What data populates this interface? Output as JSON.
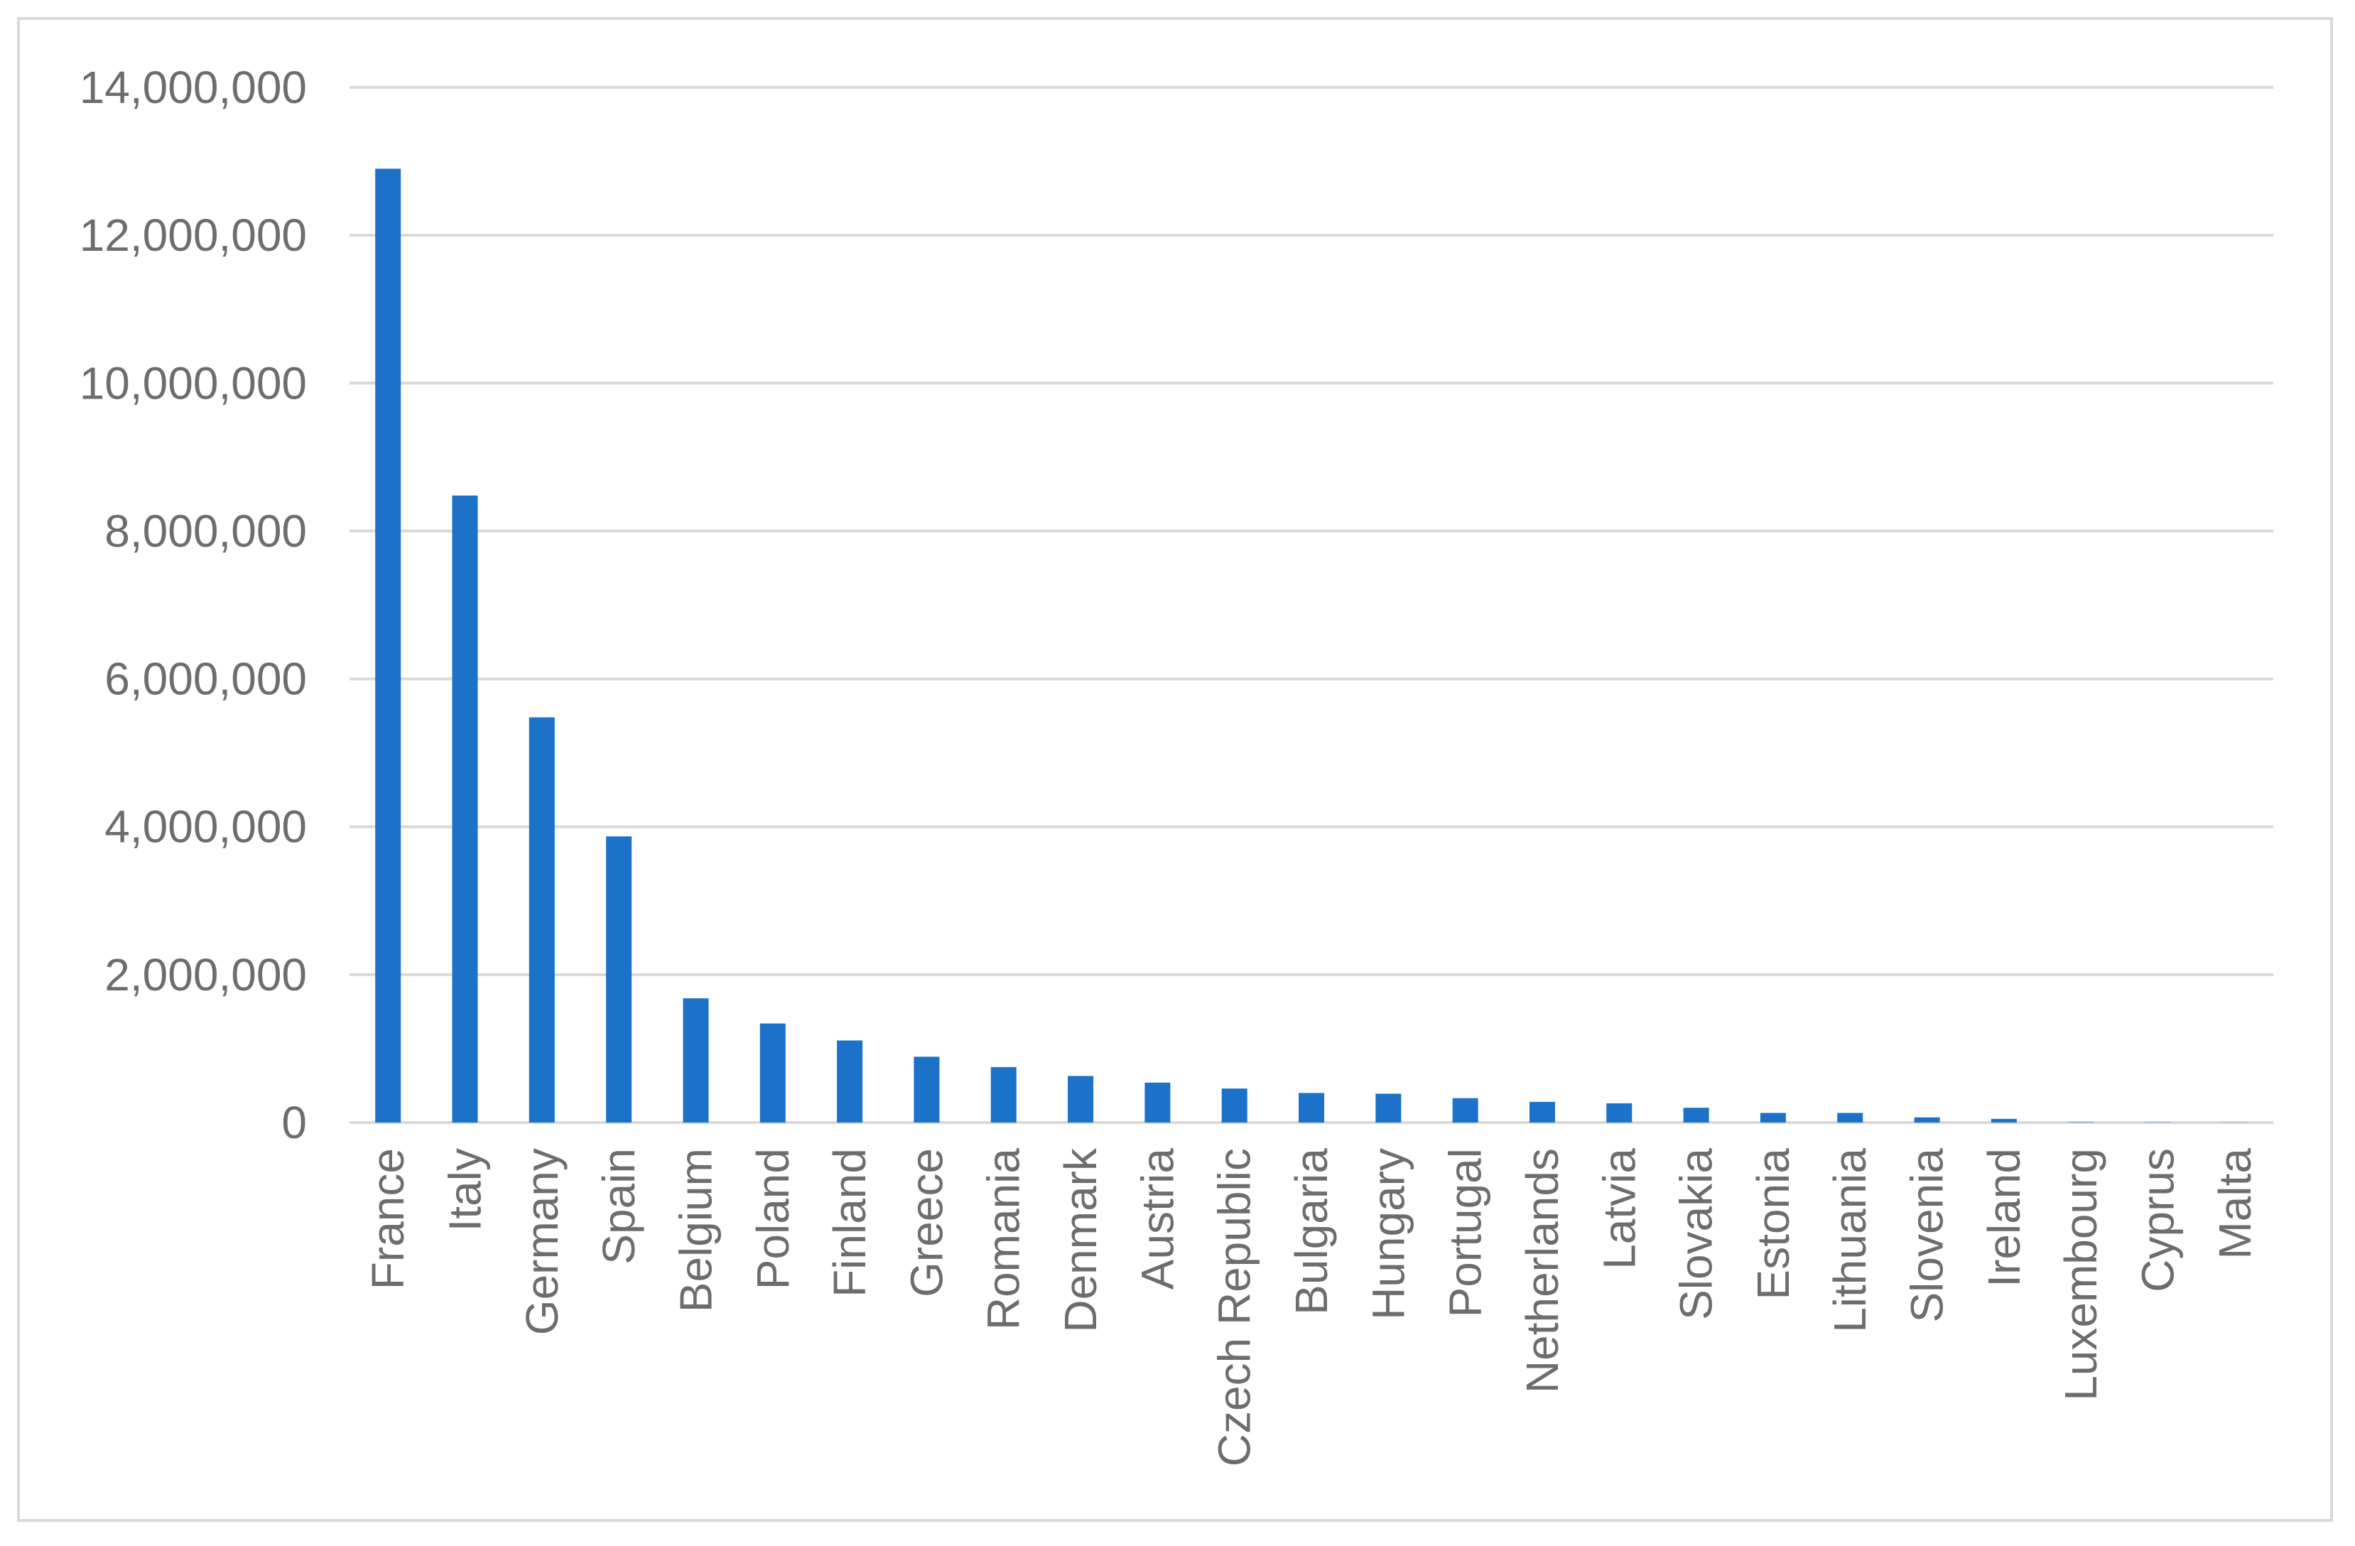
{
  "chart_data": {
    "type": "bar",
    "title": "",
    "xlabel": "",
    "ylabel": "",
    "ylim": [
      0,
      14000000
    ],
    "yticks": [
      0,
      2000000,
      4000000,
      6000000,
      8000000,
      10000000,
      12000000,
      14000000
    ],
    "ytick_labels": [
      "0",
      "2,000,000",
      "4,000,000",
      "6,000,000",
      "8,000,000",
      "10,000,000",
      "12,000,000",
      "14,000,000"
    ],
    "grid": true,
    "legend": "none",
    "bar_color": "#1b72c8",
    "grid_color": "#d9d9d9",
    "categories": [
      "France",
      "Italy",
      "Germany",
      "Spain",
      "Belgium",
      "Poland",
      "Finland",
      "Greece",
      "Romania",
      "Denmark",
      "Austria",
      "Czech Republic",
      "Bulgaria",
      "Hungary",
      "Portugal",
      "Netherlands",
      "Latvia",
      "Slovakia",
      "Estonia",
      "Lithuania",
      "Slovenia",
      "Ireland",
      "Luxembourg",
      "Cyprus",
      "Malta"
    ],
    "values": [
      12900000,
      8480000,
      5480000,
      3870000,
      1680000,
      1340000,
      1110000,
      890000,
      750000,
      630000,
      540000,
      460000,
      400000,
      390000,
      330000,
      280000,
      260000,
      200000,
      130000,
      130000,
      70000,
      50000,
      5000,
      3000,
      2000
    ]
  }
}
